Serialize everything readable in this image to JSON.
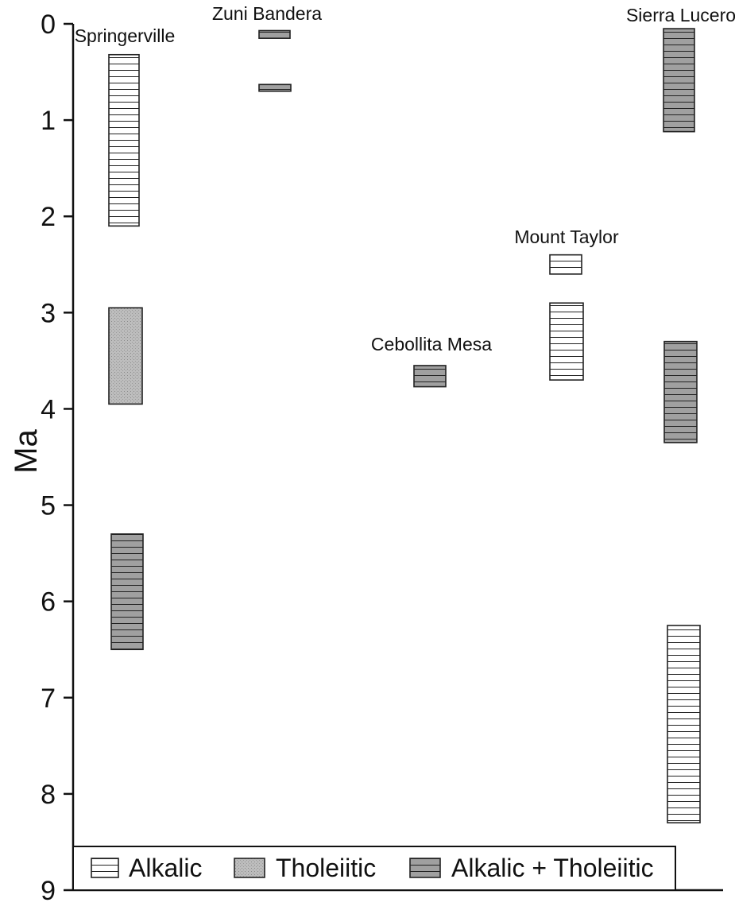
{
  "chart_data": {
    "type": "range-bar",
    "ylabel": "Ma",
    "ylim": [
      0,
      9
    ],
    "y_inverted": true,
    "yticks": [
      "0",
      "1",
      "2",
      "3",
      "4",
      "5",
      "6",
      "7",
      "8",
      "9"
    ],
    "grid": false,
    "legend_position": "bottom",
    "legend": [
      {
        "key": "alkalic",
        "label": "Alkalic"
      },
      {
        "key": "tholeiitic",
        "label": "Tholeiitic"
      },
      {
        "key": "alkalic_tholeiitic",
        "label": "Alkalic + Tholeiitic"
      }
    ],
    "categories": [
      "Springerville",
      "Zuni Bandera",
      "Cebollita Mesa",
      "Mount Taylor",
      "Sierra Lucero"
    ],
    "bars": [
      {
        "field": "Springerville",
        "type": "alkalic",
        "from_ma": 0.32,
        "to_ma": 2.1
      },
      {
        "field": "Springerville",
        "type": "tholeiitic",
        "from_ma": 2.95,
        "to_ma": 3.95
      },
      {
        "field": "Springerville",
        "type": "alkalic_tholeiitic",
        "from_ma": 5.3,
        "to_ma": 6.5
      },
      {
        "field": "Zuni Bandera",
        "type": "alkalic_tholeiitic",
        "from_ma": 0.07,
        "to_ma": 0.15
      },
      {
        "field": "Zuni Bandera",
        "type": "alkalic_tholeiitic",
        "from_ma": 0.63,
        "to_ma": 0.7
      },
      {
        "field": "Cebollita Mesa",
        "type": "alkalic_tholeiitic",
        "from_ma": 3.55,
        "to_ma": 3.77
      },
      {
        "field": "Mount Taylor",
        "type": "alkalic",
        "from_ma": 2.4,
        "to_ma": 2.6
      },
      {
        "field": "Mount Taylor",
        "type": "alkalic",
        "from_ma": 2.9,
        "to_ma": 3.7
      },
      {
        "field": "Sierra Lucero",
        "type": "alkalic_tholeiitic",
        "from_ma": 0.05,
        "to_ma": 1.12
      },
      {
        "field": "Sierra Lucero",
        "type": "alkalic_tholeiitic",
        "from_ma": 3.3,
        "to_ma": 4.35
      },
      {
        "field": "Sierra Lucero",
        "type": "alkalic",
        "from_ma": 6.25,
        "to_ma": 8.3
      }
    ]
  },
  "colors": {
    "axis": "#111111",
    "alkalic_fill": "#ffffff",
    "tholeiitic_fill": "#b8b8b8",
    "alkalic_tholeiitic_fill": "#999999",
    "stripe": "#222222"
  }
}
